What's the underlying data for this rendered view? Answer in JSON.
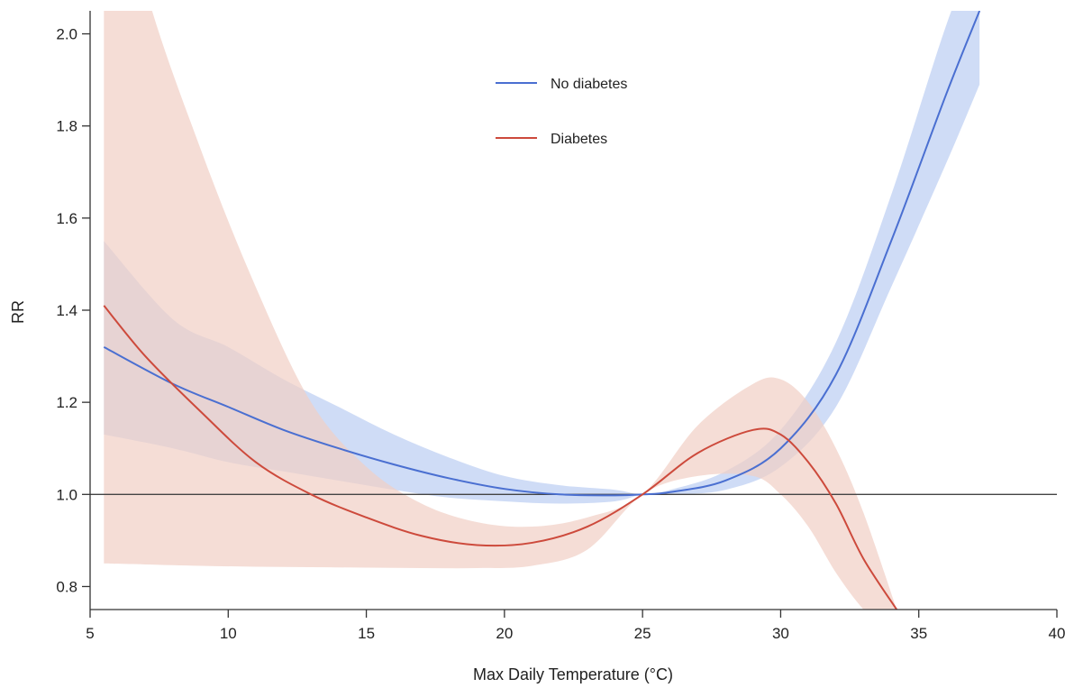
{
  "chart_data": {
    "type": "line",
    "title": "",
    "xlabel": "Max Daily Temperature (°C)",
    "ylabel": "RR",
    "xlim": [
      5,
      40
    ],
    "ylim": [
      0.75,
      2.05
    ],
    "xticks": [
      5,
      10,
      15,
      20,
      25,
      30,
      35,
      40
    ],
    "yticks": [
      0.8,
      1.0,
      1.2,
      1.4,
      1.6,
      1.8,
      2.0
    ],
    "xtick_labels": [
      "5",
      "10",
      "15",
      "20",
      "25",
      "30",
      "35",
      "40"
    ],
    "ytick_labels": [
      "0.8",
      "1.0",
      "1.2",
      "1.4",
      "1.6",
      "1.8",
      "2.0"
    ],
    "reference_line": 1.0,
    "grid": false,
    "legend_position": "top-center",
    "series": [
      {
        "name": "No diabetes",
        "color": "#4a6fd1",
        "band_color": "#c7d6f4",
        "x": [
          5.5,
          8,
          10,
          12,
          14,
          16,
          18,
          20,
          22,
          24,
          25,
          26,
          28,
          30,
          32,
          34,
          36,
          37.2
        ],
        "y": [
          1.32,
          1.24,
          1.19,
          1.14,
          1.1,
          1.065,
          1.035,
          1.012,
          1.0,
          0.998,
          1.0,
          1.005,
          1.03,
          1.1,
          1.26,
          1.55,
          1.87,
          2.05
        ],
        "lower": [
          1.13,
          1.1,
          1.07,
          1.05,
          1.03,
          1.01,
          0.993,
          0.985,
          0.98,
          0.985,
          1.0,
          1.0,
          1.01,
          1.06,
          1.19,
          1.45,
          1.72,
          1.89
        ],
        "upper": [
          1.55,
          1.38,
          1.32,
          1.25,
          1.19,
          1.13,
          1.08,
          1.04,
          1.02,
          1.01,
          1.0,
          1.01,
          1.05,
          1.14,
          1.33,
          1.65,
          2.02,
          2.2
        ]
      },
      {
        "name": "Diabetes",
        "color": "#cd4a3c",
        "band_color": "#f1cfc5",
        "x": [
          5.5,
          7,
          9,
          11,
          13,
          15,
          17,
          19,
          21,
          23,
          25,
          27,
          29,
          30,
          31,
          32,
          33,
          34.2
        ],
        "y": [
          1.41,
          1.3,
          1.18,
          1.07,
          1.0,
          0.95,
          0.91,
          0.89,
          0.895,
          0.93,
          1.0,
          1.09,
          1.14,
          1.13,
          1.07,
          0.98,
          0.86,
          0.75
        ],
        "lower": [
          0.85,
          0.848,
          0.845,
          0.843,
          0.842,
          0.841,
          0.84,
          0.84,
          0.845,
          0.88,
          1.0,
          1.04,
          1.04,
          1.0,
          0.93,
          0.83,
          0.75,
          0.68
        ],
        "upper": [
          2.5,
          2.1,
          1.75,
          1.45,
          1.2,
          1.06,
          0.98,
          0.94,
          0.93,
          0.95,
          1.0,
          1.15,
          1.24,
          1.25,
          1.2,
          1.1,
          0.96,
          0.75
        ]
      }
    ]
  }
}
